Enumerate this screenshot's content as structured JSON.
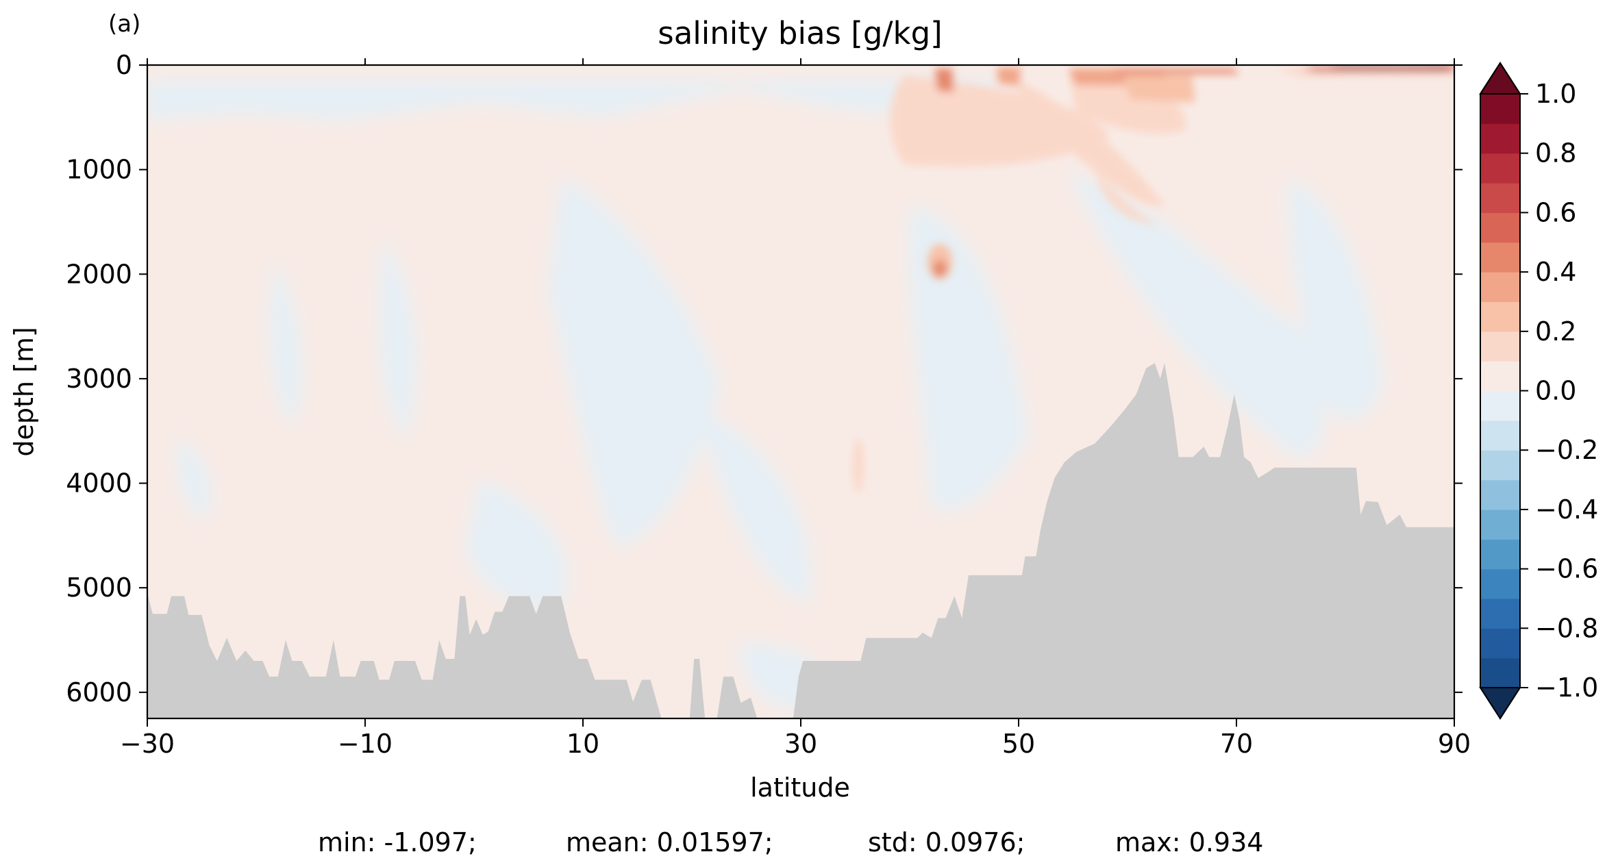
{
  "chart_data": {
    "type": "heatmap",
    "panel_label": "(a)",
    "title": "salinity bias [g/kg]",
    "xlabel": "latitude",
    "ylabel": "depth [m]",
    "xlim": [
      -30,
      90
    ],
    "ylim": [
      6250,
      0
    ],
    "x_ticks": [
      -30,
      -10,
      10,
      30,
      50,
      70,
      90
    ],
    "x_tick_labels": [
      "−30",
      "−10",
      "10",
      "30",
      "50",
      "70",
      "90"
    ],
    "y_ticks": [
      0,
      1000,
      2000,
      3000,
      4000,
      5000,
      6000
    ],
    "y_tick_labels": [
      "0",
      "1000",
      "2000",
      "3000",
      "4000",
      "5000",
      "6000"
    ],
    "colorbar": {
      "levels": [
        -1.0,
        -0.9,
        -0.8,
        -0.7,
        -0.6,
        -0.5,
        -0.4,
        -0.3,
        -0.2,
        -0.1,
        0.0,
        0.1,
        0.2,
        0.3,
        0.4,
        0.5,
        0.6,
        0.7,
        0.8,
        0.9,
        1.0
      ],
      "colors": [
        "#1a4e8a",
        "#225c9e",
        "#2c6eb0",
        "#3c84bd",
        "#5399c8",
        "#70aed4",
        "#8fc1de",
        "#b0d3e7",
        "#cde3ef",
        "#e5eff5",
        "#f8ebe6",
        "#fad8c9",
        "#f7c2a8",
        "#f1a689",
        "#e6876c",
        "#d86556",
        "#c94a48",
        "#b8303b",
        "#9f1a30",
        "#800d25"
      ],
      "extend_low_color": "#0f2d55",
      "extend_high_color": "#660a1f",
      "tick_values": [
        1.0,
        0.8,
        0.6,
        0.4,
        0.2,
        0.0,
        -0.2,
        -0.4,
        -0.6,
        -0.8,
        -1.0
      ],
      "tick_labels": [
        "1.0",
        "0.8",
        "0.6",
        "0.4",
        "0.2",
        "0.0",
        "−0.2",
        "−0.4",
        "−0.6",
        "−0.8",
        "−1.0"
      ]
    },
    "land_color": "#cccccc",
    "bathymetry": [
      [
        -30.0,
        5050
      ],
      [
        -29.5,
        5250
      ],
      [
        -28.2,
        5250
      ],
      [
        -27.8,
        5080
      ],
      [
        -26.6,
        5080
      ],
      [
        -26.2,
        5260
      ],
      [
        -25.0,
        5260
      ],
      [
        -24.3,
        5550
      ],
      [
        -23.6,
        5700
      ],
      [
        -22.7,
        5480
      ],
      [
        -21.8,
        5700
      ],
      [
        -21.0,
        5600
      ],
      [
        -20.2,
        5700
      ],
      [
        -19.4,
        5700
      ],
      [
        -18.8,
        5850
      ],
      [
        -18.0,
        5850
      ],
      [
        -17.3,
        5500
      ],
      [
        -16.7,
        5700
      ],
      [
        -15.8,
        5700
      ],
      [
        -15.1,
        5850
      ],
      [
        -13.6,
        5850
      ],
      [
        -12.9,
        5500
      ],
      [
        -12.3,
        5850
      ],
      [
        -10.9,
        5850
      ],
      [
        -10.4,
        5700
      ],
      [
        -9.2,
        5700
      ],
      [
        -8.7,
        5880
      ],
      [
        -7.8,
        5880
      ],
      [
        -7.3,
        5700
      ],
      [
        -5.4,
        5700
      ],
      [
        -4.8,
        5880
      ],
      [
        -3.8,
        5880
      ],
      [
        -3.2,
        5500
      ],
      [
        -2.6,
        5680
      ],
      [
        -1.8,
        5680
      ],
      [
        -1.3,
        5080
      ],
      [
        -0.8,
        5080
      ],
      [
        -0.4,
        5450
      ],
      [
        0.2,
        5300
      ],
      [
        0.8,
        5450
      ],
      [
        1.3,
        5420
      ],
      [
        1.9,
        5230
      ],
      [
        2.6,
        5230
      ],
      [
        3.2,
        5080
      ],
      [
        5.1,
        5080
      ],
      [
        5.7,
        5250
      ],
      [
        6.3,
        5080
      ],
      [
        8.0,
        5080
      ],
      [
        8.8,
        5430
      ],
      [
        9.6,
        5680
      ],
      [
        10.4,
        5680
      ],
      [
        11.1,
        5880
      ],
      [
        14.0,
        5880
      ],
      [
        14.6,
        6090
      ],
      [
        15.4,
        5880
      ],
      [
        16.2,
        5880
      ],
      [
        17.2,
        6250
      ],
      [
        19.8,
        6250
      ],
      [
        20.2,
        5680
      ],
      [
        20.7,
        5680
      ],
      [
        21.2,
        6250
      ],
      [
        22.3,
        6250
      ],
      [
        22.9,
        5850
      ],
      [
        23.8,
        5850
      ],
      [
        24.5,
        6100
      ],
      [
        25.4,
        6050
      ],
      [
        26.0,
        6250
      ],
      [
        29.3,
        6250
      ],
      [
        29.8,
        5850
      ],
      [
        30.2,
        5700
      ],
      [
        35.5,
        5700
      ],
      [
        36.0,
        5480
      ],
      [
        40.7,
        5480
      ],
      [
        41.2,
        5430
      ],
      [
        42.0,
        5480
      ],
      [
        42.6,
        5290
      ],
      [
        43.3,
        5290
      ],
      [
        44.1,
        5080
      ],
      [
        44.8,
        5290
      ],
      [
        45.4,
        4880
      ],
      [
        50.3,
        4880
      ],
      [
        50.6,
        4700
      ],
      [
        51.6,
        4700
      ],
      [
        52.0,
        4450
      ],
      [
        52.6,
        4180
      ],
      [
        53.3,
        3950
      ],
      [
        54.2,
        3800
      ],
      [
        55.3,
        3700
      ],
      [
        57.0,
        3620
      ],
      [
        58.5,
        3450
      ],
      [
        59.7,
        3300
      ],
      [
        60.8,
        3150
      ],
      [
        61.7,
        2900
      ],
      [
        62.5,
        2850
      ],
      [
        63.0,
        3000
      ],
      [
        63.4,
        2850
      ],
      [
        64.2,
        3350
      ],
      [
        64.7,
        3750
      ],
      [
        66.0,
        3750
      ],
      [
        67.0,
        3650
      ],
      [
        67.5,
        3750
      ],
      [
        68.5,
        3750
      ],
      [
        69.2,
        3450
      ],
      [
        69.8,
        3150
      ],
      [
        70.3,
        3400
      ],
      [
        70.7,
        3750
      ],
      [
        71.3,
        3800
      ],
      [
        72.0,
        3950
      ],
      [
        72.8,
        3900
      ],
      [
        73.5,
        3850
      ],
      [
        81.0,
        3850
      ],
      [
        81.4,
        4300
      ],
      [
        81.9,
        4170
      ],
      [
        83.0,
        4180
      ],
      [
        83.8,
        4400
      ],
      [
        85.0,
        4300
      ],
      [
        85.6,
        4420
      ],
      [
        90.0,
        4420
      ]
    ],
    "stats": {
      "min": "min: -1.097;",
      "mean": "mean: 0.01597;",
      "std": "std: 0.0976;",
      "max": "max: 0.934"
    }
  }
}
